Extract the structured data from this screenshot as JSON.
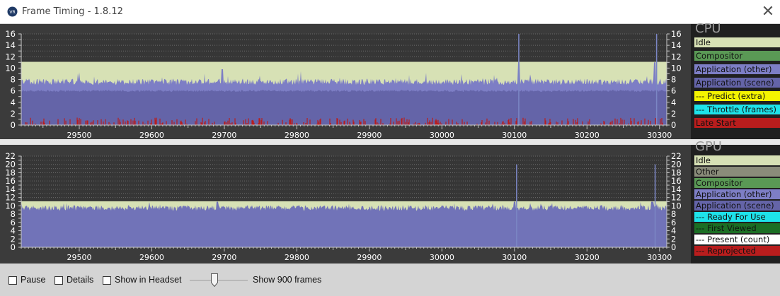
{
  "window": {
    "title": "Frame Timing - 1.8.12",
    "icon": "vr-logo-icon",
    "close_glyph": "✕"
  },
  "colors": {
    "idle": "#d7e1b5",
    "other": "#8a8c7a",
    "compositor": "#5a9955",
    "application_other": "#7d7ec5",
    "application_scene": "#6464a8",
    "predict_extra": "#f4f400",
    "throttle_frames": "#1ee3ea",
    "late_start": "#b91d1d",
    "ready_for_use": "#1ee3ea",
    "first_viewed": "#1b6e24",
    "present_count": "#ffffff",
    "reprojected": "#b91d1d"
  },
  "cpu": {
    "heading": "CPU",
    "legend": [
      {
        "label": "Idle",
        "bg": "#d7e1b5",
        "fg": "#111111"
      },
      {
        "label": "Compositor",
        "bg": "#5a9955",
        "fg": "#111111"
      },
      {
        "label": "Application (other)",
        "bg": "#7d7ec5",
        "fg": "#111111"
      },
      {
        "label": "Application (scene)",
        "bg": "#6464a8",
        "fg": "#111111"
      },
      {
        "label": "--- Predict (extra)",
        "bg": "#f4f400",
        "fg": "#111111"
      },
      {
        "label": "--- Throttle (frames)",
        "bg": "#1ee3ea",
        "fg": "#111111"
      },
      {
        "label": "Late Start",
        "bg": "#b91d1d",
        "fg": "#111111"
      }
    ]
  },
  "gpu": {
    "heading": "GPU",
    "legend": [
      {
        "label": "Idle",
        "bg": "#d7e1b5",
        "fg": "#111111"
      },
      {
        "label": "Other",
        "bg": "#8a8c7a",
        "fg": "#111111"
      },
      {
        "label": "Compositor",
        "bg": "#5a9955",
        "fg": "#111111"
      },
      {
        "label": "Application (other)",
        "bg": "#7d7ec5",
        "fg": "#111111"
      },
      {
        "label": "Application (scene)",
        "bg": "#6464a8",
        "fg": "#111111"
      },
      {
        "label": "--- Ready For Use",
        "bg": "#1ee3ea",
        "fg": "#111111"
      },
      {
        "label": "--- First Viewed",
        "bg": "#1b6e24",
        "fg": "#111111"
      },
      {
        "label": "--- Present (count)",
        "bg": "#ffffff",
        "fg": "#111111"
      },
      {
        "label": "--- Reprojected",
        "bg": "#b91d1d",
        "fg": "#111111"
      }
    ]
  },
  "chart_data": [
    {
      "type": "area",
      "title": "CPU",
      "x_range": [
        29420,
        30310
      ],
      "ylim": [
        0,
        16
      ],
      "y_ticks": [
        0,
        1,
        2,
        3,
        4,
        5,
        6,
        7,
        8,
        9,
        10,
        11,
        12,
        13,
        14,
        15,
        16
      ],
      "y_tick_labels": [
        "0",
        "2",
        "4",
        "6",
        "8",
        "10",
        "12",
        "14",
        "16"
      ],
      "x_ticks": [
        29500,
        29600,
        29700,
        29800,
        29900,
        30000,
        30100,
        30200,
        30300
      ],
      "grid": true,
      "series": [
        {
          "name": "Application (scene)",
          "description": "stacked frame time, roughly constant",
          "approx_values": [
            6.0
          ]
        },
        {
          "name": "Application (other)",
          "description": "top of stack fluctuating",
          "approx_values": [
            7.6
          ],
          "spikes": [
            {
              "x": 29697,
              "y": 9.8
            },
            {
              "x": 30106,
              "y": 11.0
            },
            {
              "x": 30293,
              "y": 11.0
            }
          ]
        },
        {
          "name": "Idle",
          "description": "fills to frame budget",
          "approx_values": [
            11.1
          ]
        },
        {
          "name": "Late Start",
          "description": "small red spikes near zero",
          "approx_values": [
            0.5
          ]
        }
      ],
      "markers": [
        {
          "x": 30106,
          "y": 16
        },
        {
          "x": 30296,
          "y": 16
        }
      ]
    },
    {
      "type": "area",
      "title": "GPU",
      "x_range": [
        29420,
        30310
      ],
      "ylim": [
        0,
        22
      ],
      "y_ticks": [
        0,
        1,
        2,
        3,
        4,
        5,
        6,
        7,
        8,
        9,
        10,
        11,
        12,
        13,
        14,
        15,
        16,
        17,
        18,
        19,
        20,
        21,
        22
      ],
      "y_tick_labels": [
        "0",
        "2",
        "4",
        "6",
        "8",
        "10",
        "12",
        "14",
        "16",
        "18",
        "20",
        "22"
      ],
      "x_ticks": [
        29500,
        29600,
        29700,
        29800,
        29900,
        30000,
        30100,
        30200,
        30300
      ],
      "grid": true,
      "series": [
        {
          "name": "Application (scene)",
          "description": "stacked frame time, noisy",
          "approx_values": [
            9.5
          ],
          "spikes": [
            {
              "x": 29690,
              "y": 11.2
            },
            {
              "x": 30100,
              "y": 12.0
            },
            {
              "x": 30290,
              "y": 12.0
            }
          ]
        },
        {
          "name": "Idle",
          "description": "fills to frame budget",
          "approx_values": [
            11.1
          ]
        }
      ],
      "markers": [
        {
          "x": 30103,
          "y": 20
        },
        {
          "x": 30294,
          "y": 20
        }
      ]
    }
  ],
  "toolbar": {
    "pause": {
      "label": "Pause",
      "checked": false
    },
    "details": {
      "label": "Details",
      "checked": false
    },
    "show_in_headset": {
      "label": "Show in Headset",
      "checked": false
    },
    "frames_label": "Show 900 frames",
    "frames_value": 900
  }
}
